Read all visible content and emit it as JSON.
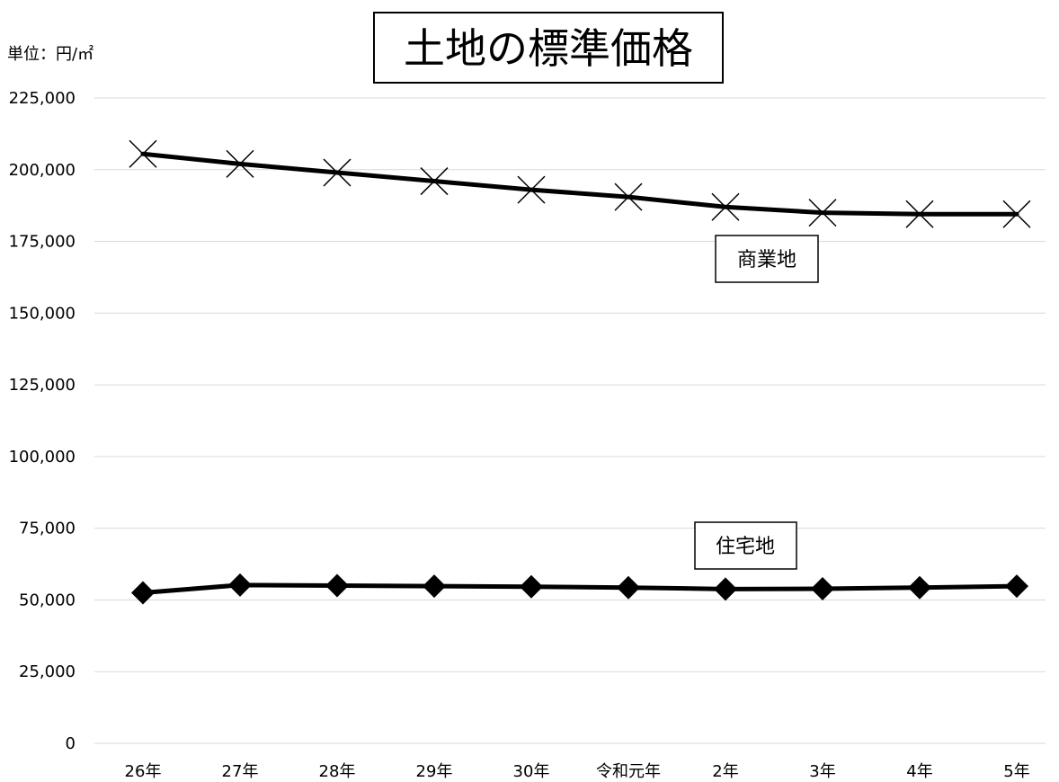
{
  "chart_data": {
    "type": "line",
    "title": "土地の標準価格",
    "unit": "単位：円/㎡",
    "categories": [
      "26年",
      "27年",
      "28年",
      "29年",
      "30年",
      "令和元年",
      "2年",
      "3年",
      "4年",
      "5年"
    ],
    "ylim": [
      0,
      225000
    ],
    "yticks": [
      "0",
      "25,000",
      "50,000",
      "75,000",
      "100,000",
      "125,000",
      "150,000",
      "175,000",
      "200,000",
      "225,000"
    ],
    "grid": true,
    "series": [
      {
        "name": "商業地",
        "marker": "x",
        "values": [
          205500,
          202000,
          199000,
          196000,
          193000,
          190500,
          187000,
          185000,
          184500,
          184500
        ]
      },
      {
        "name": "住宅地",
        "marker": "diamond",
        "values": [
          52500,
          55200,
          55000,
          54800,
          54600,
          54300,
          53800,
          53900,
          54300,
          54800
        ]
      }
    ],
    "colors": {
      "line": "#000000",
      "grid": "#d9d9d9"
    }
  }
}
